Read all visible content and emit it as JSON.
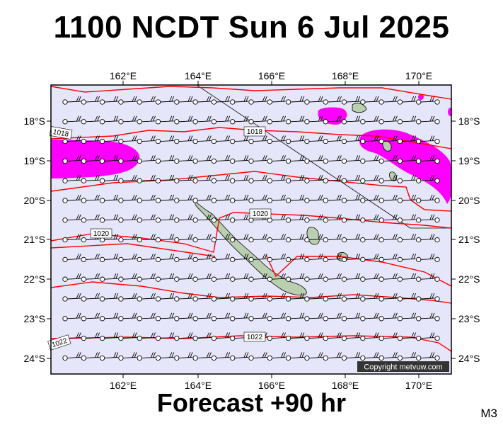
{
  "title": "1100 NCDT Sun 6 Jul 2025",
  "subtitle": "Forecast +90 hr",
  "model_code": "M3",
  "copyright": "Copyright metvuw.com",
  "map": {
    "lon_range": [
      160.0,
      171.0
    ],
    "lat_range": [
      -24.4,
      -17.0
    ],
    "lon_ticks": [
      "162°E",
      "164°E",
      "166°E",
      "168°E",
      "170°E"
    ],
    "lat_ticks": [
      "18°S",
      "19°S",
      "20°S",
      "21°S",
      "22°S",
      "23°S",
      "24°S"
    ],
    "isobar_labels": [
      "1018",
      "1018",
      "1020",
      "1020",
      "1022",
      "1022"
    ],
    "colors": {
      "sea": "#e6e6fa",
      "isobar": "#ff0000",
      "rain": "#ff00ff",
      "land": "#b9cfb0",
      "frame": "#000000"
    },
    "rain_areas": [
      "west-19S",
      "north-east-18S",
      "east-19S"
    ],
    "islands": [
      "New Caledonia",
      "Loyalty Islands",
      "Vanuatu south"
    ]
  }
}
